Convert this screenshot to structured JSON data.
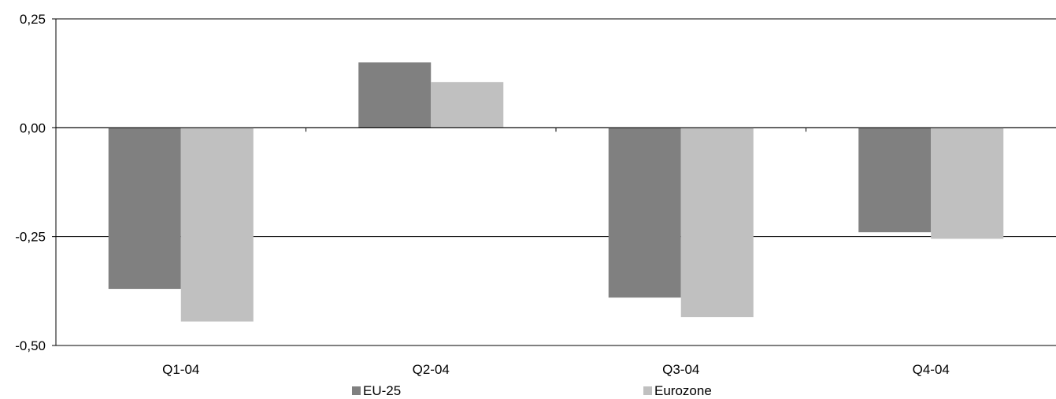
{
  "chart_data": {
    "type": "bar",
    "categories": [
      "Q1-04",
      "Q2-04",
      "Q3-04",
      "Q4-04"
    ],
    "series": [
      {
        "name": "EU-25",
        "values": [
          -0.37,
          0.15,
          -0.39,
          -0.24
        ],
        "color": "#808080"
      },
      {
        "name": "Eurozone",
        "values": [
          -0.445,
          0.105,
          -0.435,
          -0.255
        ],
        "color": "#c0c0c0"
      }
    ],
    "ylim": [
      -0.5,
      0.25
    ],
    "yticks": [
      0.25,
      0.0,
      -0.25,
      -0.5
    ],
    "ytick_labels": [
      "0,25",
      "0,00",
      "-0,25",
      "-0,50"
    ],
    "gridlines": true,
    "legend": "bottom-center"
  }
}
